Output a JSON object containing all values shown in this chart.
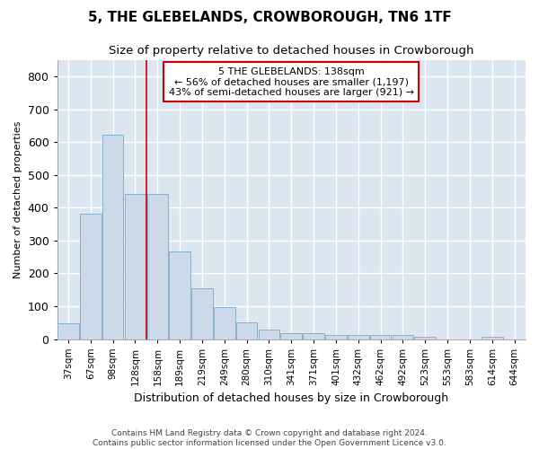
{
  "title": "5, THE GLEBELANDS, CROWBOROUGH, TN6 1TF",
  "subtitle": "Size of property relative to detached houses in Crowborough",
  "xlabel": "Distribution of detached houses by size in Crowborough",
  "ylabel": "Number of detached properties",
  "bar_color": "#ccd9e8",
  "bar_edge_color": "#8ab0cc",
  "background_color": "#dce6f0",
  "grid_color": "#ffffff",
  "fig_background": "#ffffff",
  "categories": [
    "37sqm",
    "67sqm",
    "98sqm",
    "128sqm",
    "158sqm",
    "189sqm",
    "219sqm",
    "249sqm",
    "280sqm",
    "310sqm",
    "341sqm",
    "371sqm",
    "401sqm",
    "432sqm",
    "462sqm",
    "492sqm",
    "523sqm",
    "553sqm",
    "583sqm",
    "614sqm",
    "644sqm"
  ],
  "values": [
    48,
    383,
    623,
    443,
    443,
    268,
    155,
    98,
    52,
    28,
    17,
    17,
    12,
    12,
    12,
    12,
    7,
    0,
    0,
    7,
    0
  ],
  "ylim": [
    0,
    850
  ],
  "yticks": [
    0,
    100,
    200,
    300,
    400,
    500,
    600,
    700,
    800
  ],
  "red_line_index": 3.5,
  "marker_label": "5 THE GLEBELANDS: 138sqm",
  "annotation_line1": "← 56% of detached houses are smaller (1,197)",
  "annotation_line2": "43% of semi-detached houses are larger (921) →",
  "annotation_box_color": "#ffffff",
  "annotation_border_color": "#cc0000",
  "red_line_color": "#cc0000",
  "title_fontsize": 11,
  "subtitle_fontsize": 9.5,
  "xlabel_fontsize": 9,
  "ylabel_fontsize": 8,
  "tick_fontsize": 7.5,
  "annotation_fontsize": 8,
  "footnote": "Contains HM Land Registry data © Crown copyright and database right 2024.\nContains public sector information licensed under the Open Government Licence v3.0.",
  "footnote_fontsize": 6.5
}
